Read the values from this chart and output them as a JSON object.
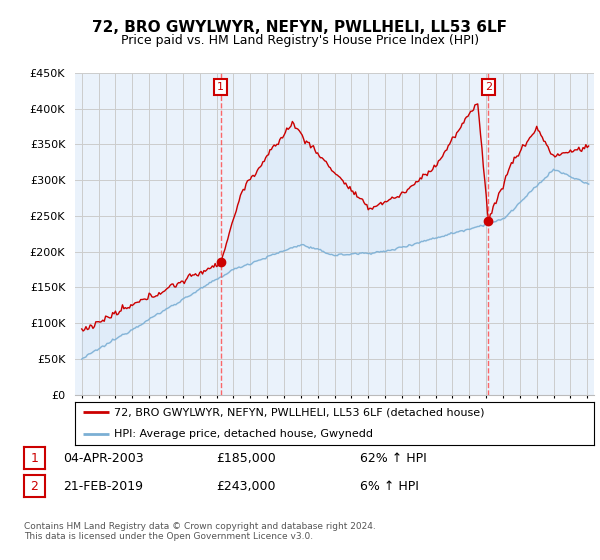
{
  "title": "72, BRO GWYLWYR, NEFYN, PWLLHELI, LL53 6LF",
  "subtitle": "Price paid vs. HM Land Registry's House Price Index (HPI)",
  "legend_line1": "72, BRO GWYLWYR, NEFYN, PWLLHELI, LL53 6LF (detached house)",
  "legend_line2": "HPI: Average price, detached house, Gwynedd",
  "transaction1_date": "04-APR-2003",
  "transaction1_price": "£185,000",
  "transaction1_hpi": "62% ↑ HPI",
  "transaction1_year": 2003.25,
  "transaction1_price_val": 185000,
  "transaction2_date": "21-FEB-2019",
  "transaction2_price": "£243,000",
  "transaction2_hpi": "6% ↑ HPI",
  "transaction2_year": 2019.13,
  "transaction2_price_val": 243000,
  "footnote": "Contains HM Land Registry data © Crown copyright and database right 2024.\nThis data is licensed under the Open Government Licence v3.0.",
  "price_color": "#cc0000",
  "hpi_color": "#7bafd4",
  "fill_color": "#ddeeff",
  "vline_color": "#ff4444",
  "grid_color": "#cccccc",
  "bg_color": "#eaf2fb",
  "plot_bg": "#eaf2fb",
  "ylim": [
    0,
    450000
  ],
  "yticks": [
    0,
    50000,
    100000,
    150000,
    200000,
    250000,
    300000,
    350000,
    400000,
    450000
  ],
  "xlim_start": 1994.6,
  "xlim_end": 2025.4
}
